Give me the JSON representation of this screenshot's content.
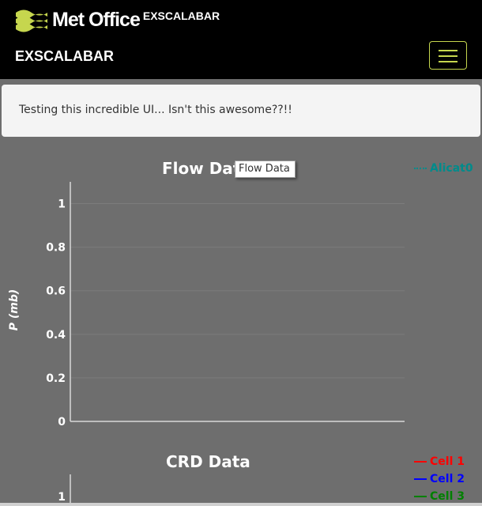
{
  "header": {
    "logo_text": "Met Office",
    "logo_subtitle": "EXSCALABAR",
    "nav_title": "EXSCALABAR",
    "menu_icon": "hamburger-icon",
    "accent_color": "#c6d64e"
  },
  "banner": {
    "message": "Testing this incredible UI... Isn't this awesome??!!"
  },
  "charts": {
    "flow": {
      "title": "Flow Data",
      "tooltip": "Flow Data"
    },
    "crd": {
      "title": "CRD Data"
    }
  },
  "chart_data": [
    {
      "type": "line",
      "title": "Flow Data",
      "ylabel": "P (mb)",
      "ylim": [
        0,
        1.1
      ],
      "yticks": [
        "0",
        "0.2",
        "0.4",
        "0.6",
        "0.8",
        "1"
      ],
      "grid": true,
      "legend_position": "top-right",
      "series": [
        {
          "name": "Alicat0",
          "color": "#008b8b",
          "style": "dotted",
          "values": []
        }
      ]
    },
    {
      "type": "line",
      "title": "CRD Data",
      "yticks": [
        "1"
      ],
      "legend_position": "top-right",
      "series": [
        {
          "name": "Cell 1",
          "color": "#ff0000",
          "values": []
        },
        {
          "name": "Cell 2",
          "color": "#0000ff",
          "values": []
        },
        {
          "name": "Cell 3",
          "color": "#008000",
          "values": []
        }
      ]
    }
  ]
}
